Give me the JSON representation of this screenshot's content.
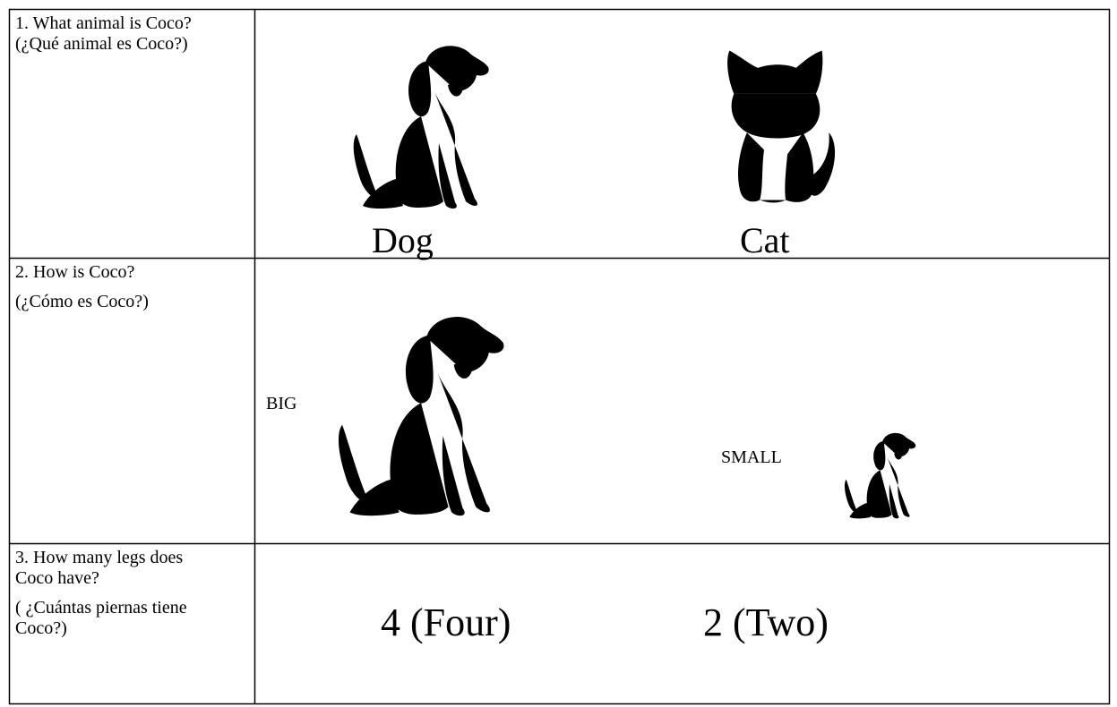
{
  "table": {
    "rows": [
      {
        "question": [
          "1. What animal is Coco? (¿Qué animal es Coco?)"
        ],
        "options": [
          "Dog",
          "Cat"
        ]
      },
      {
        "question": [
          "2. How is Coco?",
          "(¿Cómo es Coco?)"
        ],
        "options": [
          "BIG",
          "SMALL"
        ]
      },
      {
        "question": [
          "3. How many legs does Coco have?",
          "( ¿Cuántas piernas tiene Coco?)"
        ],
        "options": [
          "4 (Four)",
          "2 (Two)"
        ]
      }
    ]
  }
}
